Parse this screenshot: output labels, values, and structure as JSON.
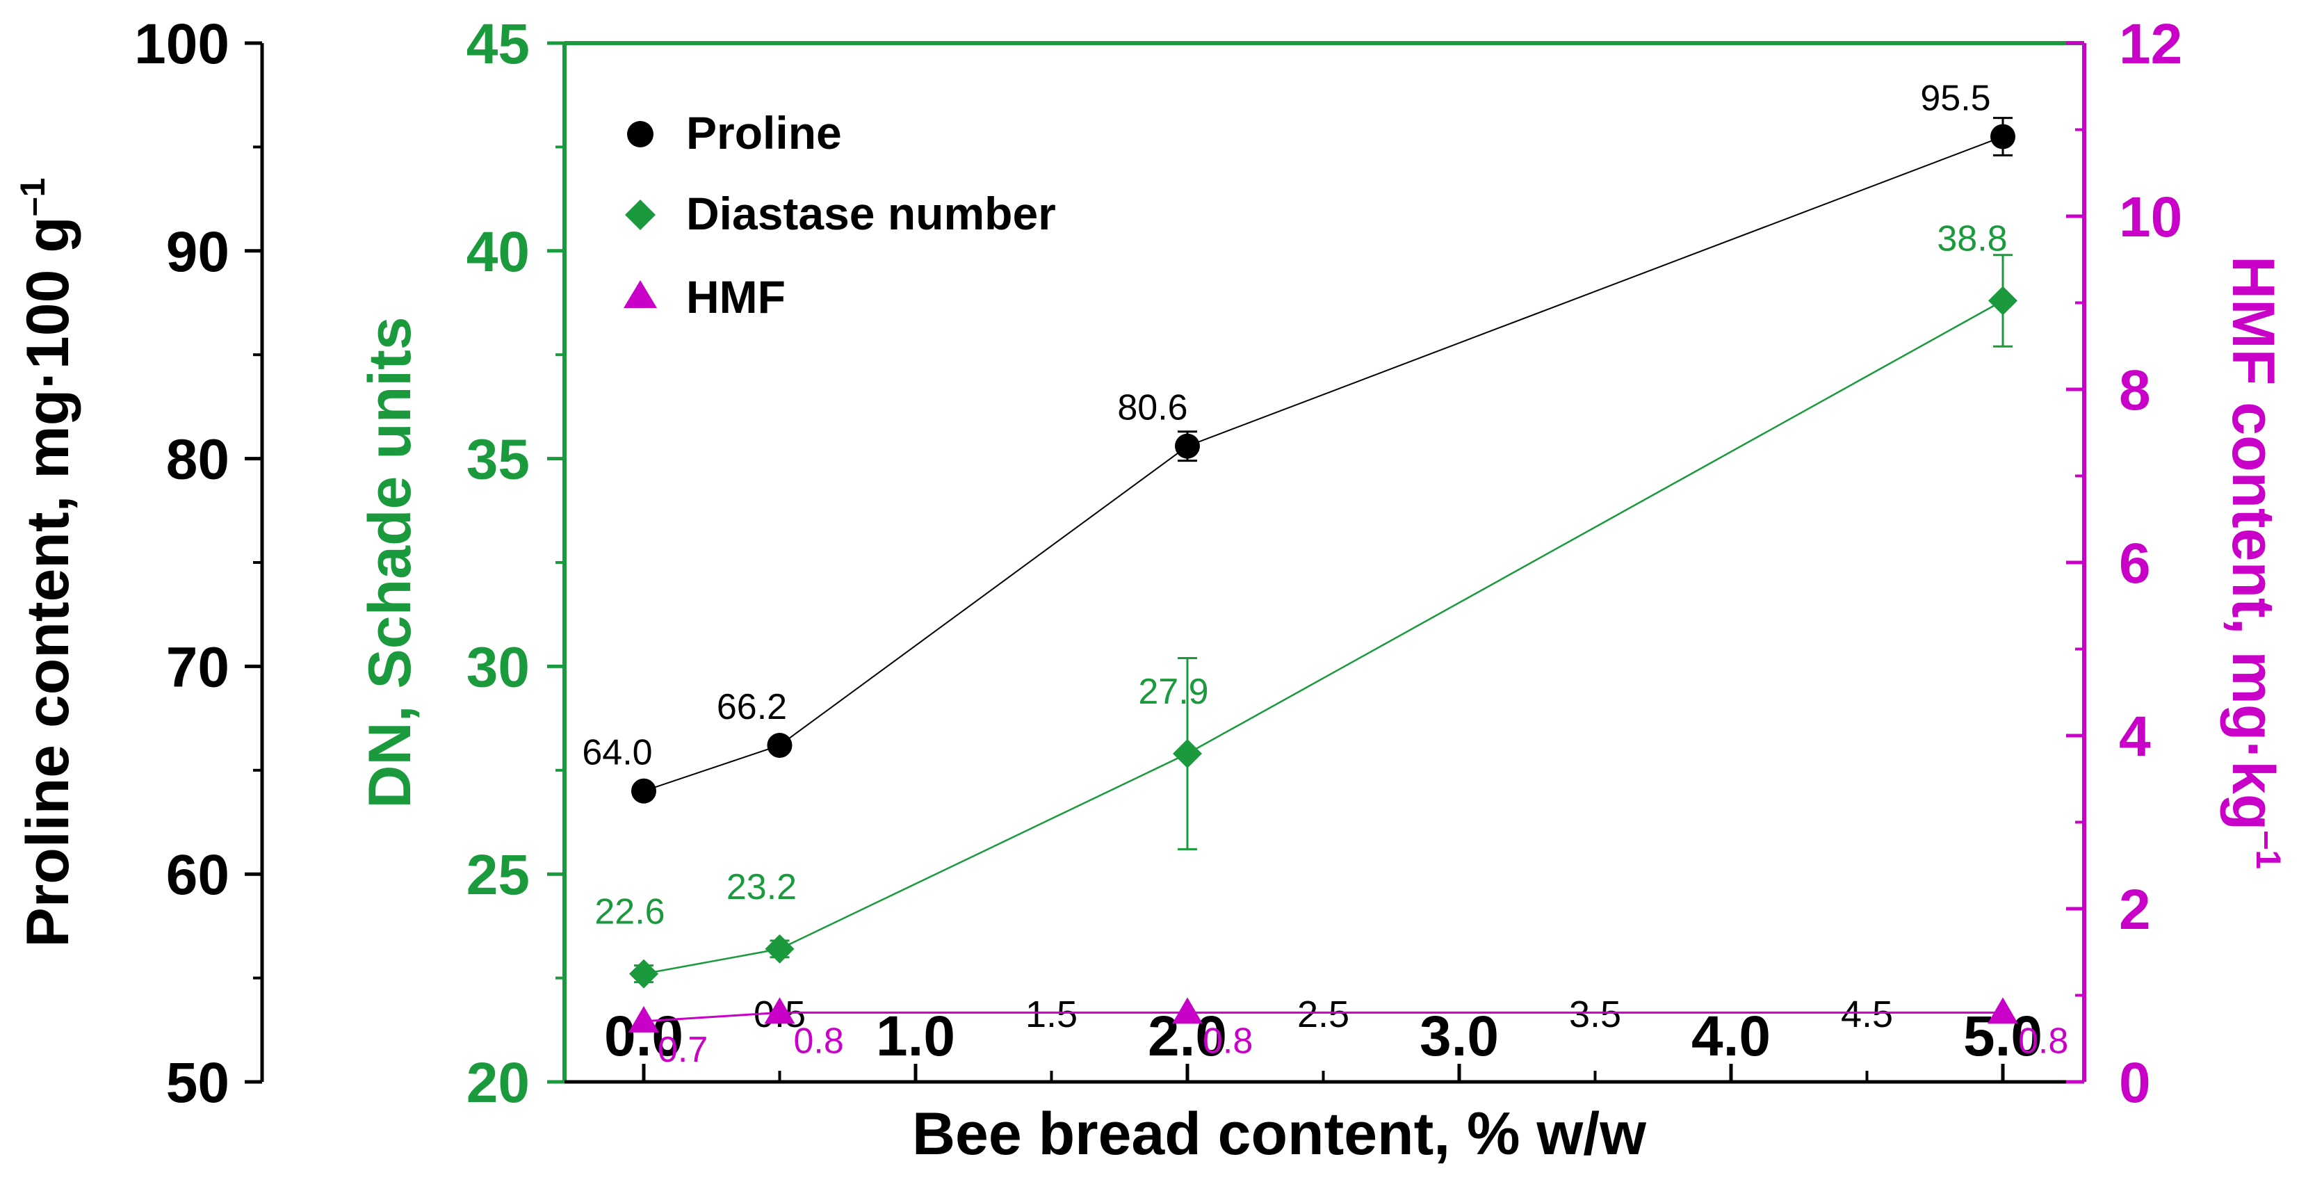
{
  "colors": {
    "proline": "#000000",
    "diastase": "#1a9a3c",
    "hmf": "#c800c8",
    "frame": "#000000"
  },
  "chart_data": {
    "type": "scatter",
    "x": [
      0.0,
      0.5,
      2.0,
      5.0
    ],
    "xlabel": "Bee bread content, % w/w",
    "xlim": [
      -0.3,
      5.3
    ],
    "x_major_ticks": [
      "0.0",
      "1.0",
      "2.0",
      "3.0",
      "4.0",
      "5.0"
    ],
    "x_minor_ticks": [
      "0.5",
      "1.5",
      "2.5",
      "3.5",
      "4.5"
    ],
    "axes": {
      "left": {
        "label_main": "Proline content, mg·100 g",
        "label_sup": "–1",
        "ylim": [
          50,
          100
        ],
        "ticks": [
          "50",
          "60",
          "70",
          "80",
          "90",
          "100"
        ]
      },
      "middle": {
        "label": "DN, Schade units",
        "ylim": [
          20,
          45
        ],
        "ticks": [
          "20",
          "25",
          "30",
          "35",
          "40",
          "45"
        ]
      },
      "right": {
        "label_main": "HMF content, mg·kg",
        "label_sup": "–1",
        "ylim": [
          0,
          12
        ],
        "ticks": [
          "0",
          "2",
          "4",
          "6",
          "8",
          "10",
          "12"
        ]
      }
    },
    "series": [
      {
        "name": "Proline",
        "axis": "left",
        "marker": "circle",
        "values": [
          64.0,
          66.2,
          80.6,
          95.5
        ],
        "errors": [
          0.0,
          0.0,
          0.7,
          0.9
        ],
        "labels": [
          "64.0",
          "66.2",
          "80.6",
          "95.5"
        ]
      },
      {
        "name": "Diastase number",
        "axis": "middle",
        "marker": "diamond",
        "values": [
          22.6,
          23.2,
          27.9,
          38.8
        ],
        "errors": [
          0.2,
          0.2,
          2.3,
          1.1
        ],
        "labels": [
          "22.6",
          "23.2",
          "27.9",
          "38.8"
        ]
      },
      {
        "name": "HMF",
        "axis": "right",
        "marker": "triangle",
        "values": [
          0.7,
          0.8,
          0.8,
          0.8
        ],
        "errors": [
          0,
          0,
          0,
          0
        ],
        "labels": [
          "0.7",
          "0.8",
          "0.8",
          "0.8"
        ]
      }
    ],
    "legend_position": "top-left"
  }
}
